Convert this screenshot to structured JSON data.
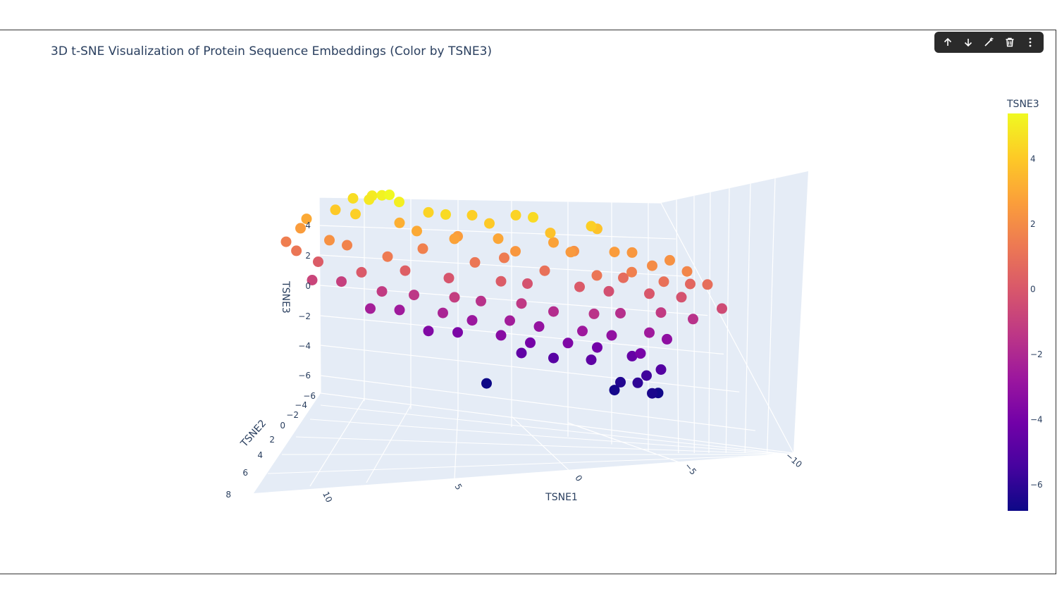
{
  "toolbar": {
    "buttons": [
      {
        "name": "move-up-button",
        "icon": "arrow-up-icon"
      },
      {
        "name": "move-down-button",
        "icon": "arrow-down-icon"
      },
      {
        "name": "edit-button",
        "icon": "magic-wand-icon"
      },
      {
        "name": "delete-button",
        "icon": "trash-icon"
      },
      {
        "name": "more-button",
        "icon": "more-vertical-icon"
      }
    ]
  },
  "chart_data": {
    "type": "scatter3d",
    "title": "3D t-SNE Visualization of Protein Sequence Embeddings (Color by TSNE3)",
    "xlabel": "TSNE1",
    "ylabel": "TSNE2",
    "zlabel": "TSNE3",
    "xlim": [
      -10,
      12
    ],
    "ylim": [
      -6,
      8
    ],
    "zlim": [
      -7,
      5.5
    ],
    "x_ticks": [
      "10",
      "5",
      "0",
      "−5",
      "−10"
    ],
    "y_ticks": [
      "−6",
      "−4",
      "−2",
      "0",
      "2",
      "4",
      "6",
      "8"
    ],
    "z_ticks": [
      "4",
      "2",
      "0",
      "−2",
      "−4",
      "−6"
    ],
    "colorbar": {
      "title": "TSNE3",
      "colorscale": "plasma",
      "range": [
        -6.8,
        5.4
      ],
      "ticks": [
        "4",
        "2",
        "0",
        "−2",
        "−4",
        "−6"
      ]
    },
    "points": [
      [
        8,
        2,
        5.2
      ],
      [
        7.8,
        2.5,
        5.4
      ],
      [
        8.3,
        1.5,
        5.0
      ],
      [
        7.5,
        3,
        5.1
      ],
      [
        8.6,
        2.2,
        4.9
      ],
      [
        9,
        1,
        4.6
      ],
      [
        9.5,
        3.5,
        4.2
      ],
      [
        10,
        2,
        4.0
      ],
      [
        6,
        2,
        4.3
      ],
      [
        5.5,
        3,
        4.5
      ],
      [
        4,
        1.5,
        4.2
      ],
      [
        3.5,
        2.5,
        4.0
      ],
      [
        2,
        1,
        4.3
      ],
      [
        1.5,
        2,
        4.5
      ],
      [
        1,
        3,
        3.8
      ],
      [
        -1,
        2,
        4.2
      ],
      [
        -1.5,
        1,
        3.8
      ],
      [
        11,
        1,
        3.0
      ],
      [
        11.5,
        2,
        2.6
      ],
      [
        10.5,
        3,
        2.2
      ],
      [
        7,
        1,
        3.2
      ],
      [
        6.5,
        2,
        3.0
      ],
      [
        5,
        2.5,
        2.8
      ],
      [
        4.5,
        1,
        2.6
      ],
      [
        3,
        2,
        2.9
      ],
      [
        2.5,
        3,
        2.4
      ],
      [
        0.5,
        1.5,
        2.8
      ],
      [
        0,
        2.5,
        2.5
      ],
      [
        -0.5,
        1,
        2.2
      ],
      [
        -2,
        2,
        2.6
      ],
      [
        -3,
        1,
        2.4
      ],
      [
        -3.5,
        2.5,
        2.0
      ],
      [
        -4.5,
        1.5,
        2.2
      ],
      [
        -5,
        2.5,
        1.8
      ],
      [
        -2.5,
        3,
        1.6
      ],
      [
        12,
        1.5,
        1.5
      ],
      [
        11.8,
        2.5,
        1.2
      ],
      [
        9.5,
        2,
        1.7
      ],
      [
        8,
        3,
        1.4
      ],
      [
        6,
        1,
        1.6
      ],
      [
        4,
        2,
        1.2
      ],
      [
        2.5,
        1,
        1.4
      ],
      [
        1,
        2,
        1.0
      ],
      [
        -1,
        3,
        1.2
      ],
      [
        -2.5,
        1.5,
        0.8
      ],
      [
        -4,
        2.5,
        1.0
      ],
      [
        -5.5,
        1,
        0.6
      ],
      [
        -6,
        2,
        0.9
      ],
      [
        10.5,
        1,
        0.2
      ],
      [
        9,
        2.5,
        0.1
      ],
      [
        7,
        2,
        0.3
      ],
      [
        5,
        1.5,
        -0.1
      ],
      [
        3,
        2.5,
        0.2
      ],
      [
        1.5,
        1,
        -0.2
      ],
      [
        -0.5,
        2,
        0.1
      ],
      [
        -2,
        1,
        -0.3
      ],
      [
        -3.5,
        2,
        0.0
      ],
      [
        -5,
        1.5,
        -0.2
      ],
      [
        -6.5,
        2.5,
        -0.5
      ],
      [
        11,
        2,
        -0.8
      ],
      [
        9.5,
        1,
        -1.0
      ],
      [
        8,
        2,
        -1.2
      ],
      [
        6.5,
        1.5,
        -1.4
      ],
      [
        5,
        2.5,
        -1.1
      ],
      [
        3.5,
        1,
        -1.6
      ],
      [
        2,
        2,
        -1.3
      ],
      [
        0.5,
        1.5,
        -1.8
      ],
      [
        -1,
        2.5,
        -1.5
      ],
      [
        -2.5,
        1,
        -1.7
      ],
      [
        -4,
        2,
        -1.2
      ],
      [
        -5.5,
        1.5,
        -1.6
      ],
      [
        8.5,
        2,
        -2.4
      ],
      [
        7,
        1,
        -2.6
      ],
      [
        5.5,
        2.5,
        -2.2
      ],
      [
        4,
        1.5,
        -2.8
      ],
      [
        2.5,
        2,
        -2.5
      ],
      [
        1,
        1,
        -3.0
      ],
      [
        -0.5,
        2.5,
        -2.7
      ],
      [
        -2,
        1.5,
        -3.1
      ],
      [
        -3.5,
        2,
        -2.6
      ],
      [
        -4.5,
        1,
        -3.2
      ],
      [
        6,
        2,
        -3.6
      ],
      [
        4.5,
        1,
        -3.8
      ],
      [
        3,
        2.5,
        -3.4
      ],
      [
        1.5,
        1.5,
        -4.0
      ],
      [
        0,
        2,
        -3.7
      ],
      [
        -1.5,
        1,
        -4.1
      ],
      [
        -3,
        2.5,
        -3.9
      ],
      [
        2,
        2,
        -4.6
      ],
      [
        0.5,
        1.5,
        -4.9
      ],
      [
        -1,
        2,
        -4.7
      ],
      [
        -3,
        1,
        -4.5
      ],
      [
        -4,
        2,
        -5.0
      ],
      [
        -3.5,
        1.5,
        -5.6
      ],
      [
        -3,
        2,
        -6.0
      ],
      [
        -2.5,
        1,
        -6.3
      ],
      [
        -3.5,
        2.5,
        -6.5
      ],
      [
        -4,
        1.5,
        -6.7
      ],
      [
        -2,
        2,
        -6.6
      ],
      [
        3.5,
        2,
        -6.8
      ]
    ]
  }
}
